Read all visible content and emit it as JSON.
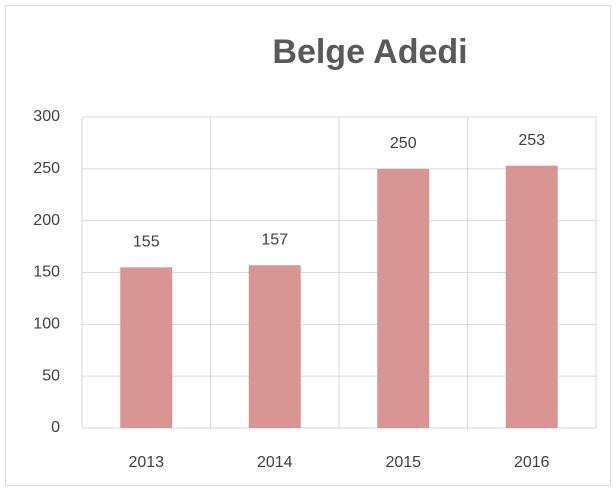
{
  "chart_data": {
    "type": "bar",
    "title": "Belge Adedi",
    "categories": [
      "2013",
      "2014",
      "2015",
      "2016"
    ],
    "values": [
      155,
      157,
      250,
      253
    ],
    "color": "#d99594",
    "ylim": [
      0,
      300
    ],
    "yticks": [
      0,
      50,
      100,
      150,
      200,
      250,
      300
    ],
    "grid": true,
    "data_labels": true
  }
}
